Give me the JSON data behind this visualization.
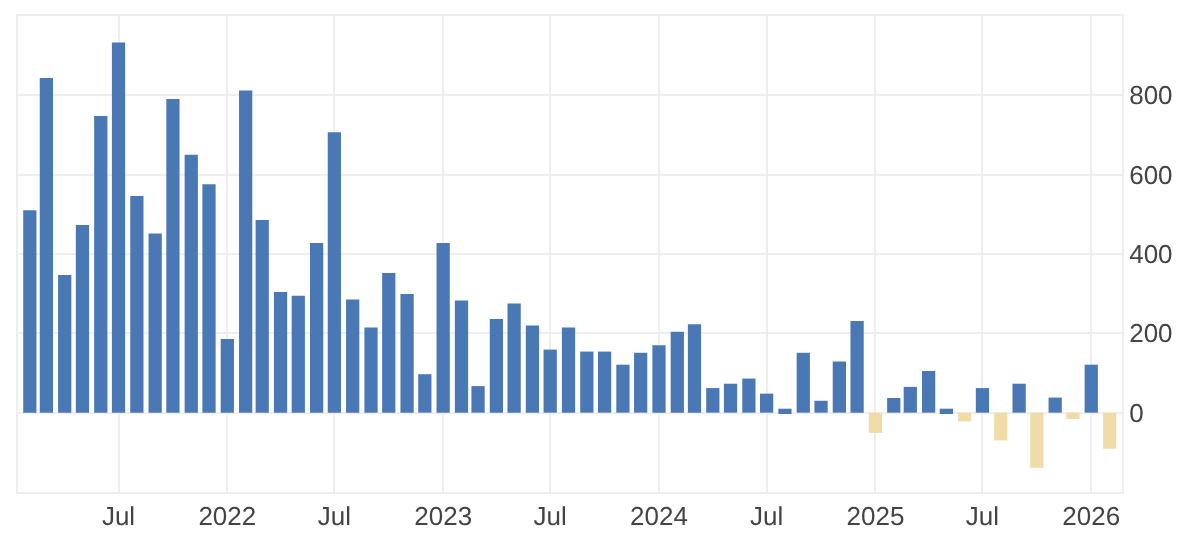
{
  "chart_data": {
    "type": "bar",
    "x": [
      "2021-02",
      "2021-03",
      "2021-04",
      "2021-05",
      "2021-06",
      "2021-07",
      "2021-08",
      "2021-09",
      "2021-10",
      "2021-11",
      "2021-12",
      "2022-01",
      "2022-02",
      "2022-03",
      "2022-04",
      "2022-05",
      "2022-06",
      "2022-07",
      "2022-08",
      "2022-09",
      "2022-10",
      "2022-11",
      "2022-12",
      "2023-01",
      "2023-02",
      "2023-03",
      "2023-04",
      "2023-05",
      "2023-06",
      "2023-07",
      "2023-08",
      "2023-09",
      "2023-10",
      "2023-11",
      "2023-12",
      "2024-01",
      "2024-02",
      "2024-03",
      "2024-04",
      "2024-05",
      "2024-06",
      "2024-07",
      "2024-08",
      "2024-09",
      "2024-10",
      "2024-11",
      "2024-12",
      "2025-01",
      "2025-02",
      "2025-03",
      "2025-04",
      "2025-05",
      "2025-06",
      "2025-07",
      "2025-08",
      "2025-09",
      "2025-10",
      "2025-11",
      "2025-12",
      "2026-01",
      "2026-02"
    ],
    "values": [
      510,
      844,
      347,
      473,
      748,
      933,
      546,
      452,
      791,
      650,
      576,
      186,
      812,
      486,
      304,
      295,
      428,
      707,
      285,
      215,
      352,
      299,
      97,
      428,
      283,
      67,
      236,
      275,
      220,
      159,
      215,
      154,
      154,
      121,
      151,
      170,
      204,
      223,
      62,
      73,
      86,
      48,
      10,
      151,
      30,
      129,
      231,
      -51,
      37,
      65,
      105,
      10,
      -22,
      62,
      -70,
      73,
      -139,
      38,
      -16,
      121,
      -91
    ],
    "colors": [
      "#4a78b5",
      "#4a78b5",
      "#4a78b5",
      "#4a78b5",
      "#4a78b5",
      "#4a78b5",
      "#4a78b5",
      "#4a78b5",
      "#4a78b5",
      "#4a78b5",
      "#4a78b5",
      "#4a78b5",
      "#4a78b5",
      "#4a78b5",
      "#4a78b5",
      "#4a78b5",
      "#4a78b5",
      "#4a78b5",
      "#4a78b5",
      "#4a78b5",
      "#4a78b5",
      "#4a78b5",
      "#4a78b5",
      "#4a78b5",
      "#4a78b5",
      "#4a78b5",
      "#4a78b5",
      "#4a78b5",
      "#4a78b5",
      "#4a78b5",
      "#4a78b5",
      "#4a78b5",
      "#4a78b5",
      "#4a78b5",
      "#4a78b5",
      "#4a78b5",
      "#4a78b5",
      "#4a78b5",
      "#4a78b5",
      "#4a78b5",
      "#4a78b5",
      "#4a78b5",
      "#4a78b5",
      "#4a78b5",
      "#4a78b5",
      "#4a78b5",
      "#4a78b5",
      "#f0dca8",
      "#4a78b5",
      "#4a78b5",
      "#4a78b5",
      "#4a78b5",
      "#f0dca8",
      "#4a78b5",
      "#f0dca8",
      "#4a78b5",
      "#f0dca8",
      "#4a78b5",
      "#f0dca8",
      "#4a78b5",
      "#f0dca8"
    ],
    "xlim": [
      "2021-01-12",
      "2026-02-22"
    ],
    "xticks": [
      {
        "value": "2021-07",
        "label": "Jul"
      },
      {
        "value": "2022-01",
        "label": "2022"
      },
      {
        "value": "2022-07",
        "label": "Jul"
      },
      {
        "value": "2023-01",
        "label": "2023"
      },
      {
        "value": "2023-07",
        "label": "Jul"
      },
      {
        "value": "2024-01",
        "label": "2024"
      },
      {
        "value": "2024-07",
        "label": "Jul"
      },
      {
        "value": "2025-01",
        "label": "2025"
      },
      {
        "value": "2025-07",
        "label": "Jul"
      },
      {
        "value": "2026-01",
        "label": "2026"
      }
    ],
    "ylim": [
      -200,
      1000
    ],
    "yticks": [
      0,
      200,
      400,
      600,
      800
    ],
    "grid": true
  }
}
